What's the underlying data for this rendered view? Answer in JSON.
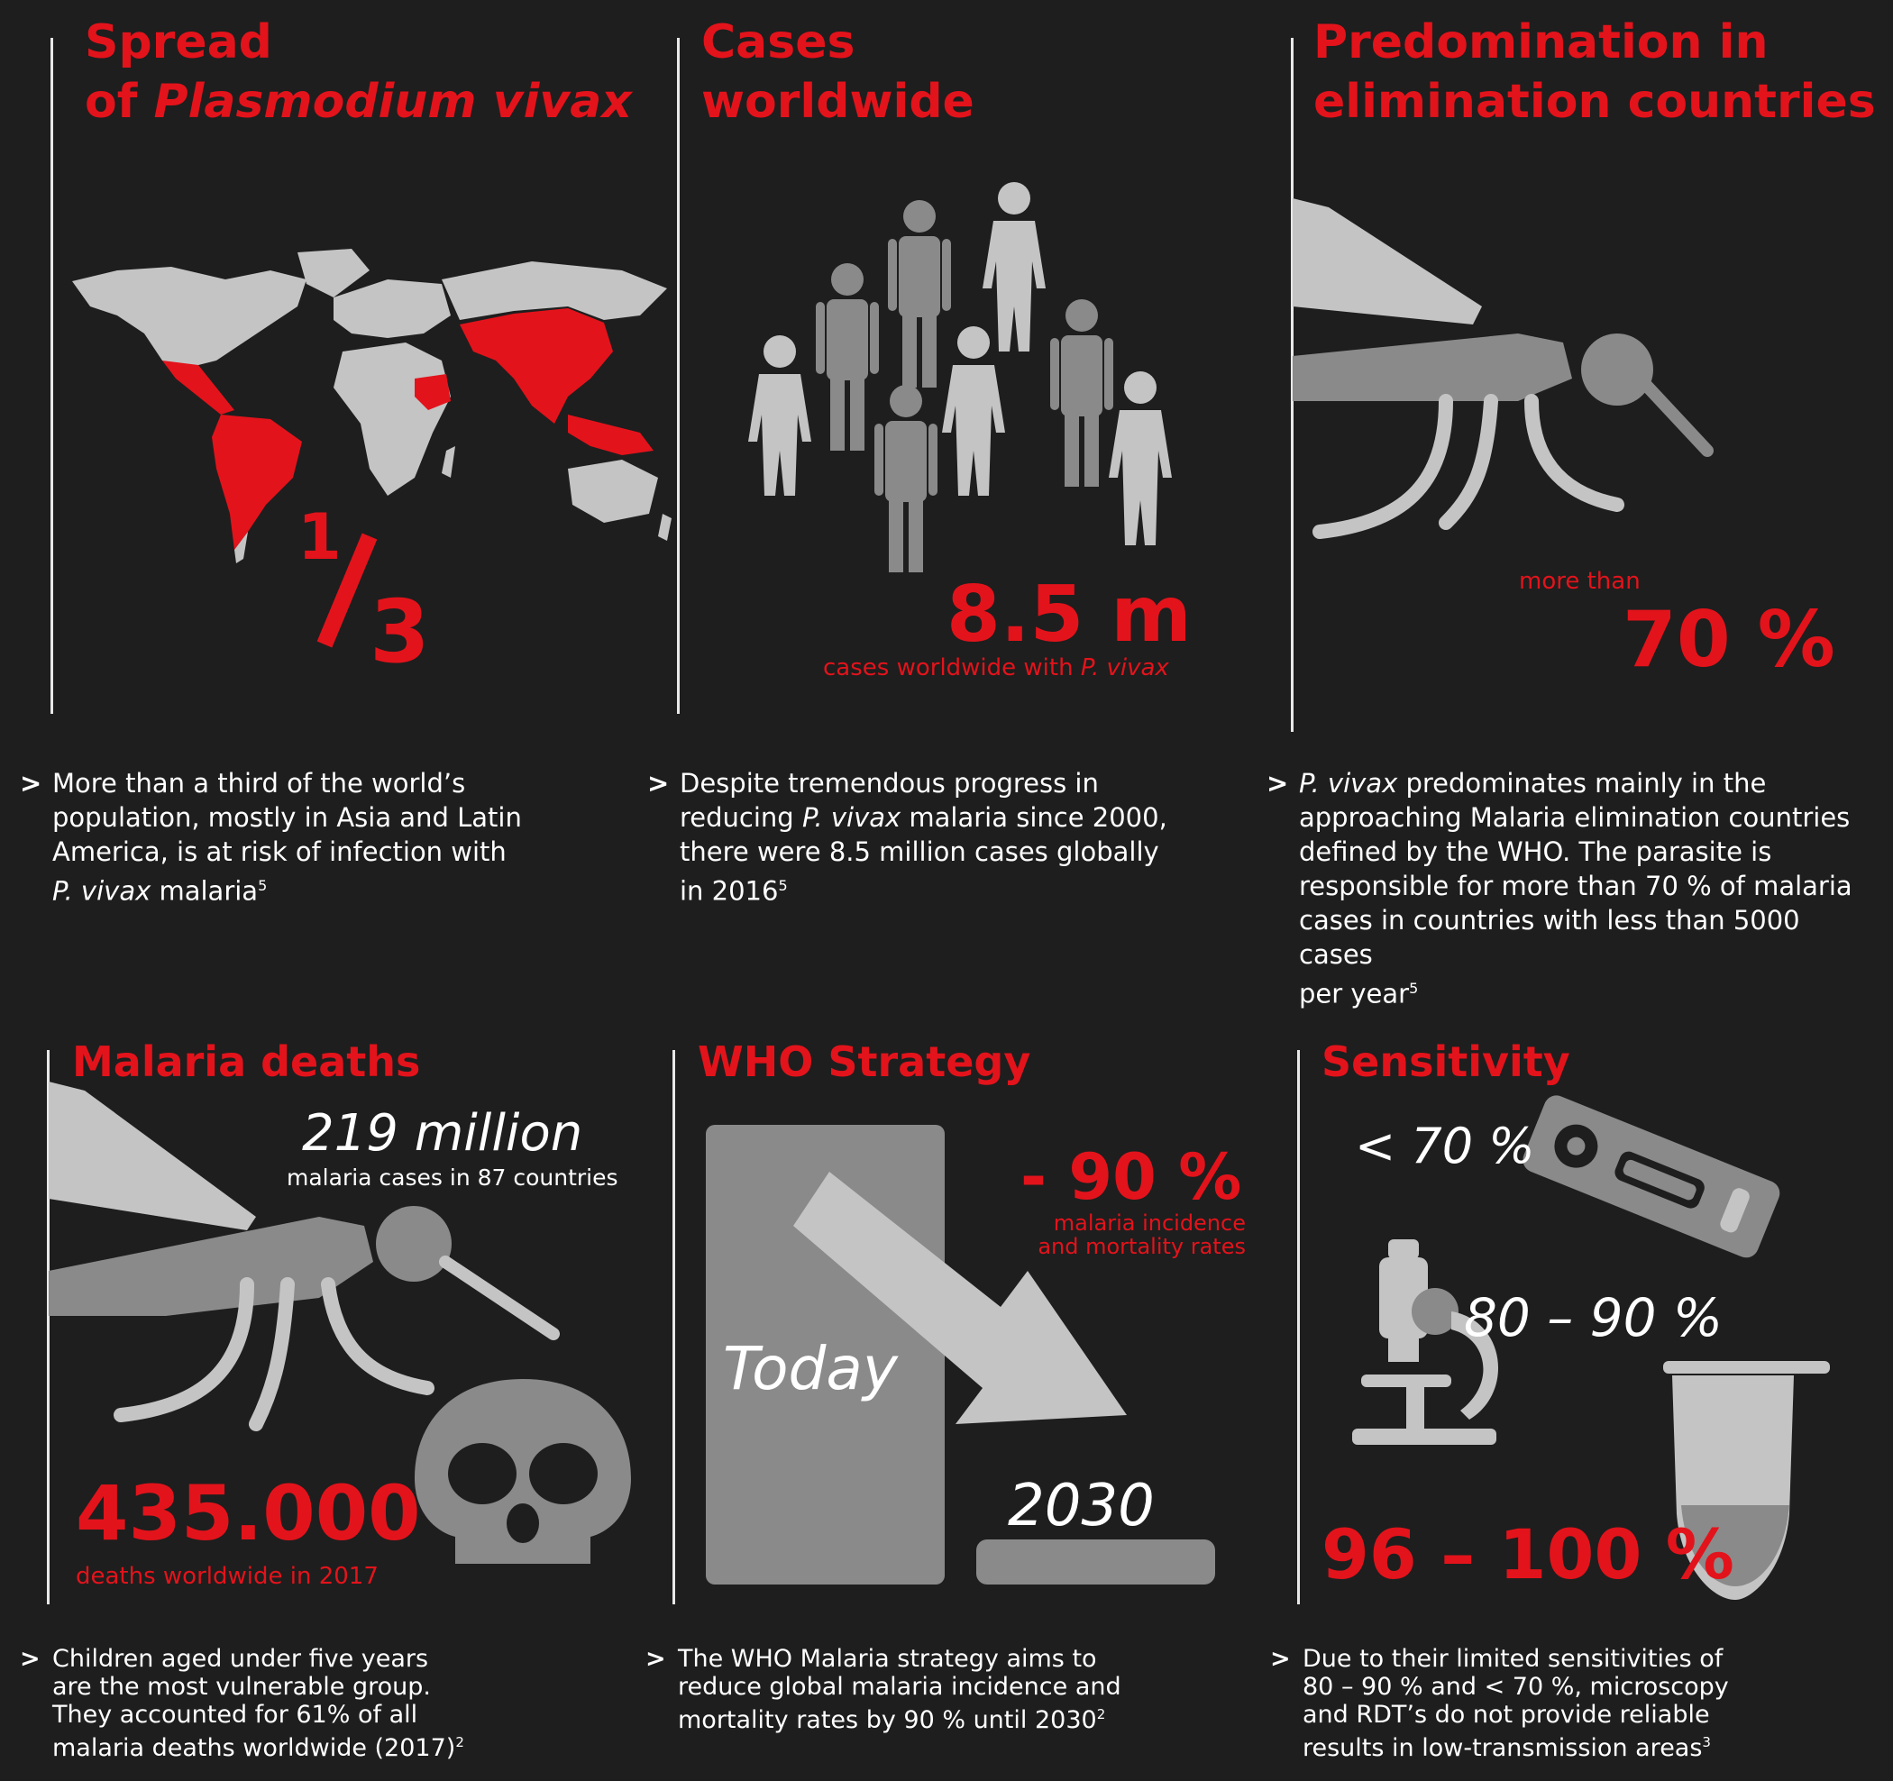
{
  "colors": {
    "accent": "#e3131b",
    "background": "#1e1e1e",
    "grey_light": "#c4c4c4",
    "grey_dark": "#8a8a8a",
    "text": "#ffffff"
  },
  "panel1": {
    "title_line1": "Spread",
    "title_line2_prefix": "of ",
    "title_line2_italic": "Plasmodium vivax",
    "fraction_num": "1",
    "fraction_den": "3",
    "desc_line1": "More than a third of the world’s",
    "desc_line2": "population, mostly in Asia and Latin",
    "desc_line3": "America, is at risk of infection with",
    "desc_line4_italic": "P. vivax",
    "desc_line4_rest": " malaria",
    "desc_ref": "5"
  },
  "panel2": {
    "title_line1": "Cases",
    "title_line2": "worldwide",
    "stat": "8.5 m",
    "stat_caption_prefix": "cases worldwide with ",
    "stat_caption_italic": "P. vivax",
    "desc_line1": "Despite tremendous progress in",
    "desc_line2_prefix": "reducing ",
    "desc_line2_italic": "P. vivax",
    "desc_line2_rest": " malaria since 2000,",
    "desc_line3": "there were 8.5 million cases globally",
    "desc_line4": "in 2016",
    "desc_ref": "5"
  },
  "panel3": {
    "title_line1": "Predomination in",
    "title_line2": "elimination countries",
    "stat_prefix": "more than",
    "stat": "70 %",
    "desc_line1_italic": "P. vivax",
    "desc_line1_rest": " predominates mainly in the",
    "desc_line2": "approaching Malaria elimination countries",
    "desc_line3": "defined by the WHO. The parasite is",
    "desc_line4": "responsible for more than 70 % of malaria",
    "desc_line5": "cases in countries with less than 5000 cases",
    "desc_line6": "per year",
    "desc_ref": "5"
  },
  "panel4": {
    "title": "Malaria deaths",
    "cases_stat": "219 million",
    "cases_caption": "malaria cases in 87 countries",
    "deaths_stat": "435.000",
    "deaths_caption": "deaths worldwide in  2017",
    "desc_line1": "Children aged under five years",
    "desc_line2": "are the most vulnerable group.",
    "desc_line3": "They accounted for 61% of all",
    "desc_line4": "malaria deaths worldwide (2017)",
    "desc_ref": "2"
  },
  "panel5": {
    "title": "WHO Strategy",
    "stat": "- 90 %",
    "stat_caption1": "malaria incidence",
    "stat_caption2": "and mortality rates",
    "today_label": "Today",
    "year_label": "2030",
    "desc_line1": "The WHO Malaria strategy aims to",
    "desc_line2": "reduce global malaria incidence and",
    "desc_line3": "mortality rates by 90 % until 2030",
    "desc_ref": "2"
  },
  "panel6": {
    "title": "Sensitivity",
    "rdt_label": "< 70 %",
    "microscopy_label": "80 – 90 %",
    "pcr_label": "96 – 100 %",
    "desc_line1": "Due to their limited sensitivities of",
    "desc_line2": "80 – 90 % and < 70 %, microscopy",
    "desc_line3": "and RDT’s do not provide reliable",
    "desc_line4": "results in low-transmission areas",
    "desc_ref": "3"
  },
  "bullet_symbol": ">"
}
